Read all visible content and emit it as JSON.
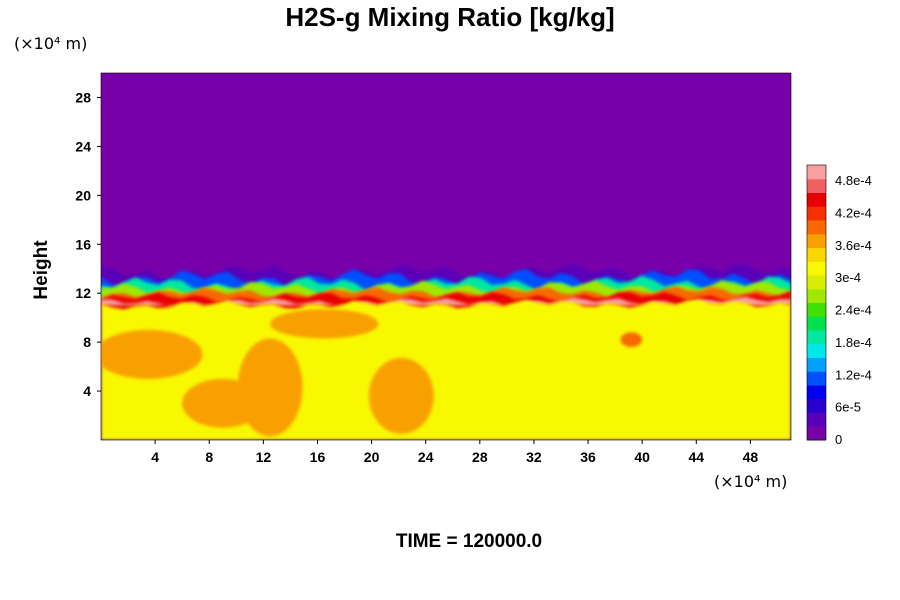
{
  "chart_data": {
    "type": "heatmap",
    "title": "H2S-g Mixing Ratio [kg/kg]",
    "ylabel": "Height",
    "xlabel": "",
    "x_unit": "(×10⁴ m)",
    "y_unit": "(×10⁴ m)",
    "xlim": [
      0,
      51
    ],
    "ylim": [
      0,
      30
    ],
    "x_ticks": [
      4,
      8,
      12,
      16,
      20,
      24,
      28,
      32,
      36,
      40,
      44,
      48
    ],
    "y_ticks": [
      4,
      8,
      12,
      16,
      20,
      24,
      28
    ],
    "colorbar": {
      "range": [
        0,
        0.00051
      ],
      "tick_labels": [
        "0",
        "6e-5",
        "1.2e-4",
        "1.8e-4",
        "2.4e-4",
        "3e-4",
        "3.6e-4",
        "4.2e-4",
        "4.8e-4"
      ],
      "tick_values": [
        0,
        6e-05,
        0.00012,
        0.00018,
        0.00024,
        0.0003,
        0.00036,
        0.00042,
        0.00048
      ],
      "colors": [
        "#7800a8",
        "#5a00b8",
        "#2a00d0",
        "#0000f0",
        "#0050ff",
        "#00a0ff",
        "#00e8e8",
        "#00e8a0",
        "#00e050",
        "#40e000",
        "#a0e800",
        "#d8f000",
        "#f8f800",
        "#f8d800",
        "#f8a000",
        "#f86800",
        "#f83000",
        "#e80000",
        "#f06060",
        "#f8a0a0"
      ]
    },
    "field_regions": [
      {
        "description_value": 0,
        "y_from": 13.5,
        "y_to": 30
      },
      {
        "description_value": 0.0001,
        "y_from": 12.5,
        "y_to": 13.8
      },
      {
        "description_value": 0.0005,
        "y_from": 11,
        "y_to": 12
      },
      {
        "description_value": 0.00033,
        "y_from": 0,
        "y_to": 11
      }
    ],
    "time_label": "TIME = 120000.0"
  }
}
